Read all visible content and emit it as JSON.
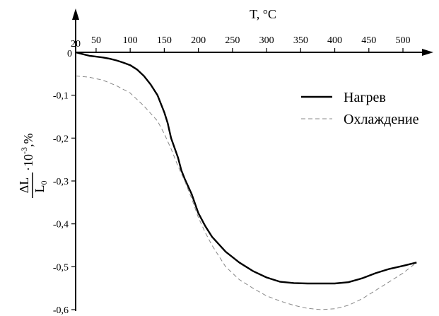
{
  "chart_data": {
    "type": "line",
    "xlabel": "T, °C",
    "ylabel": "ΔL/L0·10⁻³,%",
    "ylabel_parts": {
      "num": "ΔL",
      "den": "L",
      "den_sub": "0",
      "mid": "·10",
      "exp": "-3",
      "tail": ",%"
    },
    "x_axis_position": "top",
    "x_ticks": [
      {
        "value": 20,
        "label": "20"
      },
      {
        "value": 50,
        "label": "50"
      },
      {
        "value": 100,
        "label": "100"
      },
      {
        "value": 150,
        "label": "150"
      },
      {
        "value": 200,
        "label": "200"
      },
      {
        "value": 250,
        "label": "250"
      },
      {
        "value": 300,
        "label": "300"
      },
      {
        "value": 350,
        "label": "350"
      },
      {
        "value": 400,
        "label": "400"
      },
      {
        "value": 450,
        "label": "450"
      },
      {
        "value": 500,
        "label": "500"
      }
    ],
    "y_ticks": [
      {
        "value": 0,
        "label": "0"
      },
      {
        "value": -0.1,
        "label": "-0,1"
      },
      {
        "value": -0.2,
        "label": "-0,2"
      },
      {
        "value": -0.3,
        "label": "-0,3"
      },
      {
        "value": -0.4,
        "label": "-0,4"
      },
      {
        "value": -0.5,
        "label": "-0,5"
      },
      {
        "value": -0.6,
        "label": "-0,6"
      }
    ],
    "xlim": [
      20,
      520
    ],
    "ylim": [
      -0.6,
      0
    ],
    "grid": false,
    "legend_position": "right",
    "series": [
      {
        "name": "Нагрев",
        "style": "solid",
        "color": "#000000",
        "x": [
          20,
          30,
          40,
          50,
          60,
          70,
          80,
          90,
          100,
          110,
          120,
          130,
          140,
          145,
          150,
          155,
          160,
          170,
          175,
          180,
          190,
          200,
          210,
          220,
          240,
          260,
          280,
          300,
          320,
          340,
          360,
          380,
          400,
          420,
          440,
          460,
          480,
          500,
          520
        ],
        "y": [
          0,
          -0.004,
          -0.008,
          -0.01,
          -0.012,
          -0.015,
          -0.019,
          -0.024,
          -0.03,
          -0.04,
          -0.055,
          -0.075,
          -0.1,
          -0.12,
          -0.14,
          -0.165,
          -0.2,
          -0.245,
          -0.275,
          -0.295,
          -0.33,
          -0.375,
          -0.405,
          -0.43,
          -0.465,
          -0.49,
          -0.51,
          -0.525,
          -0.535,
          -0.538,
          -0.539,
          -0.539,
          -0.539,
          -0.536,
          -0.527,
          -0.515,
          -0.505,
          -0.498,
          -0.49
        ]
      },
      {
        "name": "Охлаждение",
        "style": "dashed",
        "color": "#888888",
        "x": [
          20,
          40,
          60,
          80,
          100,
          120,
          140,
          150,
          160,
          170,
          180,
          190,
          200,
          210,
          220,
          240,
          260,
          280,
          300,
          320,
          340,
          360,
          380,
          400,
          420,
          440,
          460,
          480,
          500,
          520
        ],
        "y": [
          -0.055,
          -0.058,
          -0.065,
          -0.078,
          -0.095,
          -0.125,
          -0.16,
          -0.19,
          -0.225,
          -0.265,
          -0.3,
          -0.34,
          -0.385,
          -0.42,
          -0.45,
          -0.5,
          -0.53,
          -0.55,
          -0.568,
          -0.58,
          -0.59,
          -0.597,
          -0.6,
          -0.598,
          -0.59,
          -0.575,
          -0.555,
          -0.535,
          -0.515,
          -0.49
        ]
      }
    ]
  },
  "colors": {
    "axis": "#000000",
    "heating": "#000000",
    "cooling": "#888888",
    "background": "#ffffff"
  }
}
